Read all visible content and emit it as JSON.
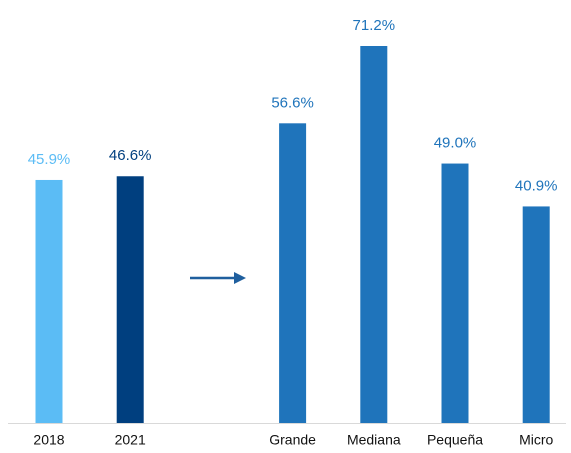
{
  "chart_data": {
    "type": "bar",
    "categories": [
      "2018",
      "2021",
      null,
      "Grande",
      "Mediana",
      "Pequeña",
      "Micro"
    ],
    "values": [
      45.9,
      46.6,
      null,
      56.6,
      71.2,
      49.0,
      40.9
    ],
    "value_labels": [
      "45.9%",
      "46.6%",
      null,
      "56.6%",
      "71.2%",
      "49.0%",
      "40.9%"
    ],
    "colors": [
      "#5bbcf5",
      "#003f7f",
      null,
      "#1f74bb",
      "#1f74bb",
      "#1f74bb",
      "#1f74bb"
    ]
  }
}
